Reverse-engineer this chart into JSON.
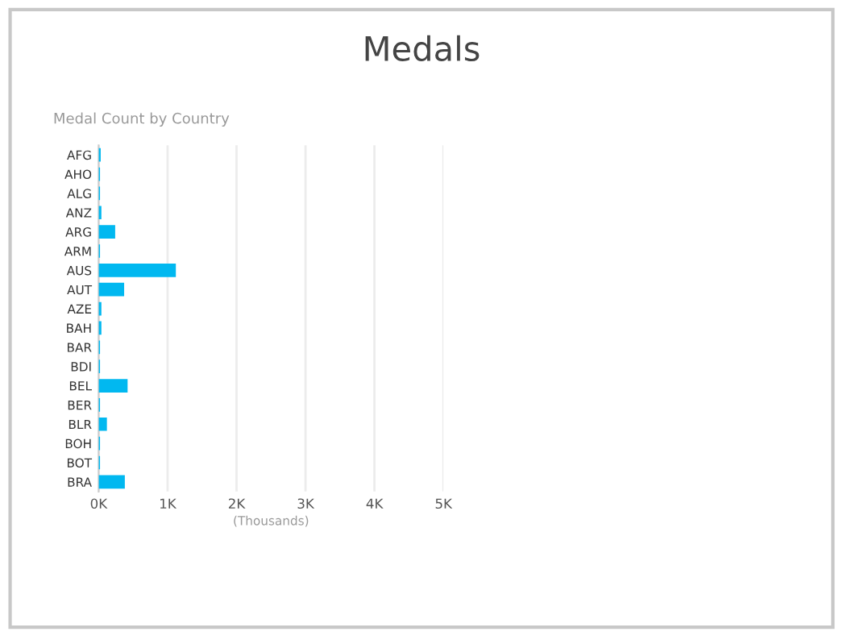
{
  "chart_data": {
    "type": "bar",
    "orientation": "horizontal",
    "title": "Medals",
    "subtitle": "Medal Count by Country",
    "xlabel": "(Thousands)",
    "categories": [
      "AFG",
      "AHO",
      "ALG",
      "ANZ",
      "ARG",
      "ARM",
      "AUS",
      "AUT",
      "AZE",
      "BAH",
      "BAR",
      "BDI",
      "BEL",
      "BER",
      "BLR",
      "BOH",
      "BOT",
      "BRA"
    ],
    "values": [
      0.03,
      0.02,
      0.02,
      0.04,
      0.24,
      0.02,
      1.12,
      0.37,
      0.04,
      0.04,
      0.02,
      0.02,
      0.42,
      0.02,
      0.12,
      0.02,
      0.02,
      0.38
    ],
    "color": "#01b8f0",
    "xlim": [
      0,
      5
    ],
    "xticks": [
      {
        "value": 0,
        "label": "0K"
      },
      {
        "value": 1,
        "label": "1K"
      },
      {
        "value": 2,
        "label": "2K"
      },
      {
        "value": 3,
        "label": "3K"
      },
      {
        "value": 4,
        "label": "4K"
      },
      {
        "value": 5,
        "label": "5K"
      }
    ],
    "grid": "x"
  }
}
